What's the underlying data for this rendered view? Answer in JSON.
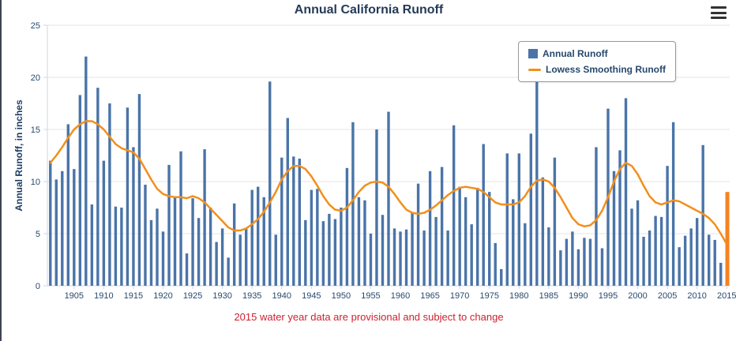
{
  "header": {
    "title": "Annual California Runoff",
    "menu_icon": "hamburger-icon"
  },
  "y_axis_title": "Annual Runoff, in inches",
  "footnote": "2015 water year data are provisional and subject to change",
  "legend": [
    {
      "label": "Annual Runoff",
      "type": "bar",
      "color": "#4a74a8"
    },
    {
      "label": "Lowess Smoothing Runoff",
      "type": "line",
      "color": "#f28f1c"
    }
  ],
  "colors": {
    "bar": "#4a74a8",
    "line": "#f28f1c",
    "highlight_bar": "#f58220",
    "grid": "#e6e6e6",
    "axis": "#ccd6eb",
    "tick_label": "#27496d",
    "title": "#253b56",
    "footnote": "#cf2030"
  },
  "chart_data": {
    "type": "bar",
    "title": "Annual California Runoff",
    "xlabel": "",
    "ylabel": "Annual Runoff, in inches",
    "ylim": [
      0,
      25
    ],
    "yticks": [
      0,
      5,
      10,
      15,
      20,
      25
    ],
    "x_start": 1901,
    "x_end": 2015,
    "xticks": [
      1905,
      1910,
      1915,
      1920,
      1925,
      1930,
      1935,
      1940,
      1945,
      1950,
      1955,
      1960,
      1965,
      1970,
      1975,
      1980,
      1985,
      1990,
      1995,
      2000,
      2005,
      2010,
      2015
    ],
    "grid": true,
    "legend_position": "top-right-inside",
    "highlight": {
      "year": 2015,
      "color": "#f58220",
      "reason": "provisional"
    },
    "series": [
      {
        "name": "Annual Runoff",
        "type": "bar",
        "color": "#4a74a8",
        "values": [
          12.0,
          10.2,
          11.0,
          15.5,
          11.2,
          18.3,
          22.0,
          7.8,
          19.0,
          12.0,
          17.5,
          7.6,
          7.5,
          17.1,
          13.3,
          18.4,
          9.7,
          6.3,
          7.4,
          5.2,
          11.6,
          8.5,
          12.9,
          3.1,
          8.4,
          6.5,
          13.1,
          7.5,
          4.2,
          5.5,
          2.7,
          7.9,
          4.9,
          5.5,
          9.2,
          9.5,
          8.5,
          19.6,
          4.9,
          12.3,
          16.1,
          12.4,
          12.2,
          6.3,
          9.2,
          9.3,
          6.2,
          6.9,
          6.4,
          7.5,
          11.3,
          15.7,
          8.5,
          8.2,
          5.0,
          15.0,
          6.8,
          16.7,
          5.5,
          5.2,
          5.4,
          7.0,
          9.8,
          5.3,
          11.0,
          6.6,
          11.4,
          5.3,
          15.4,
          9.5,
          8.5,
          5.9,
          9.4,
          13.6,
          9.0,
          4.1,
          1.6,
          12.7,
          8.3,
          12.7,
          6.0,
          14.6,
          20.5,
          10.4,
          5.6,
          12.3,
          3.4,
          4.5,
          5.2,
          3.5,
          4.6,
          4.5,
          13.3,
          3.6,
          17.0,
          11.0,
          13.0,
          18.0,
          7.4,
          8.2,
          4.7,
          5.3,
          6.7,
          6.6,
          11.5,
          15.7,
          3.7,
          4.8,
          5.5,
          6.5,
          13.5,
          4.9,
          4.4,
          2.2,
          9.0
        ]
      },
      {
        "name": "Lowess Smoothing Runoff",
        "type": "line",
        "color": "#f28f1c",
        "values": [
          11.8,
          12.5,
          13.3,
          14.2,
          15.0,
          15.5,
          15.8,
          15.8,
          15.5,
          15.0,
          14.3,
          13.6,
          13.2,
          13.0,
          12.8,
          12.2,
          11.2,
          10.2,
          9.3,
          8.8,
          8.6,
          8.5,
          8.5,
          8.4,
          8.6,
          8.4,
          8.0,
          7.4,
          6.8,
          6.2,
          5.6,
          5.3,
          5.3,
          5.5,
          5.9,
          6.4,
          7.1,
          8.0,
          9.0,
          10.2,
          11.0,
          11.5,
          11.5,
          11.2,
          10.5,
          9.6,
          8.6,
          7.8,
          7.3,
          7.2,
          7.5,
          8.2,
          9.0,
          9.6,
          9.9,
          10.0,
          9.9,
          9.5,
          8.8,
          8.0,
          7.3,
          7.0,
          6.9,
          7.0,
          7.3,
          7.7,
          8.2,
          8.7,
          9.1,
          9.4,
          9.5,
          9.4,
          9.3,
          9.0,
          8.5,
          8.0,
          7.8,
          7.8,
          7.8,
          8.0,
          8.6,
          9.5,
          10.1,
          10.2,
          10.0,
          9.4,
          8.5,
          7.5,
          6.5,
          5.9,
          5.7,
          5.8,
          6.3,
          7.2,
          8.5,
          10.0,
          11.2,
          11.8,
          11.5,
          10.7,
          9.6,
          8.6,
          8.0,
          7.8,
          8.0,
          8.2,
          8.1,
          7.8,
          7.5,
          7.2,
          6.9,
          6.5,
          5.9,
          5.0,
          4.0
        ]
      }
    ]
  }
}
